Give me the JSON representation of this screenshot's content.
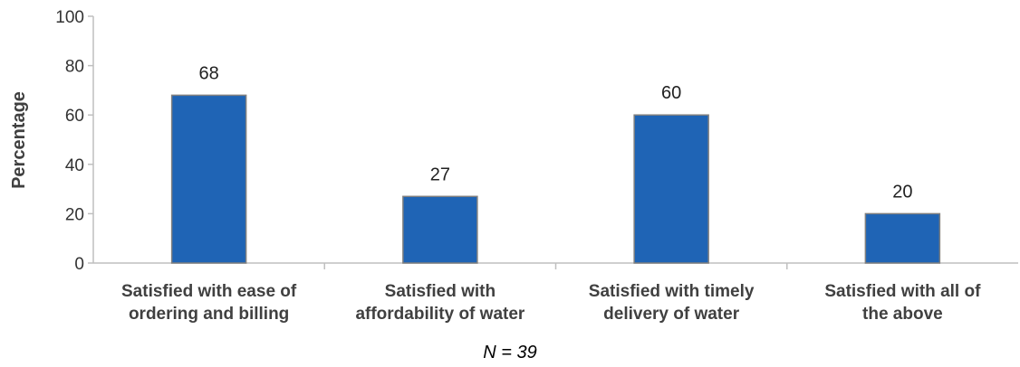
{
  "chart_data": {
    "type": "bar",
    "categories": [
      [
        "Satisfied with ease of",
        "ordering and billing"
      ],
      [
        "Satisfied with",
        "affordability of water"
      ],
      [
        "Satisfied with timely",
        "delivery of water"
      ],
      [
        "Satisfied with all of",
        "the above"
      ]
    ],
    "values": [
      68,
      27,
      60,
      20
    ],
    "data_labels": [
      "68",
      "27",
      "60",
      "20"
    ],
    "ylabel": "Percentage",
    "ylim": [
      0,
      100
    ],
    "yticks": [
      "0",
      "20",
      "40",
      "60",
      "80",
      "100"
    ],
    "grid": false,
    "note": "N = 39",
    "bar_color": "#1f64b5",
    "bar_edge_color": "#7f7f7f",
    "axis_color": "#bfbfbf"
  }
}
